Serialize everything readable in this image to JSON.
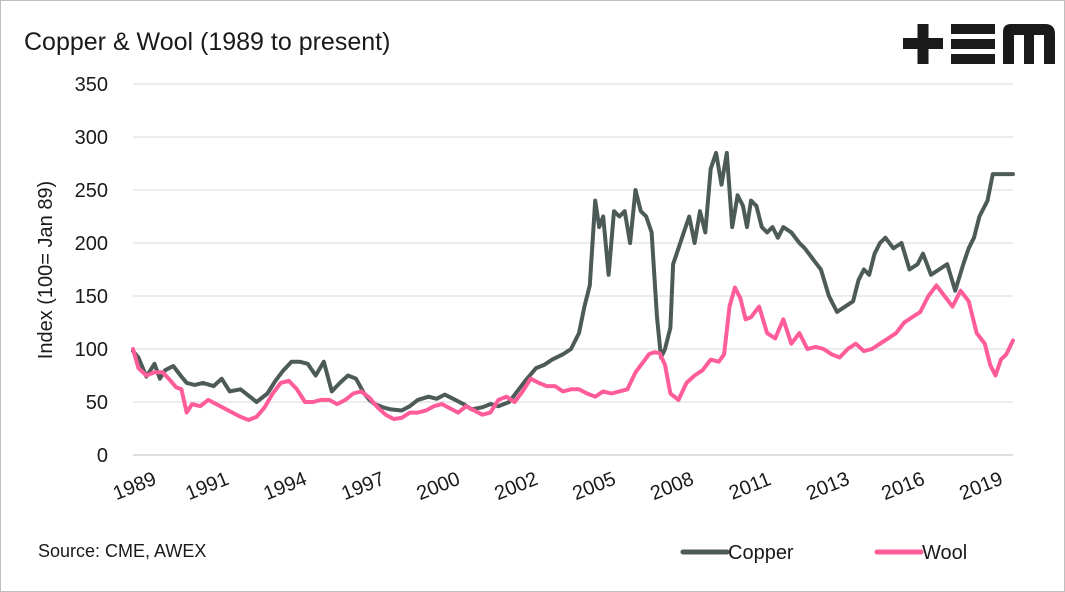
{
  "title": "Copper & Wool (1989 to present)",
  "source": "Source: CME, AWEX",
  "logo_text": "+EM",
  "colors": {
    "copper": "#4d5b58",
    "wool": "#ff5c9a",
    "grid": "#d9d9d9",
    "text": "#1a1a1a"
  },
  "chart_data": {
    "type": "line",
    "title": "Copper & Wool (1989 to present)",
    "xlabel": "",
    "ylabel": "Index (100= Jan 89)",
    "ylim": [
      0,
      350
    ],
    "yticks": [
      0,
      50,
      100,
      150,
      200,
      250,
      300,
      350
    ],
    "xlim": [
      1989.0,
      2021.75
    ],
    "xtick_labels": [
      "1989",
      "1991",
      "1994",
      "1997",
      "2000",
      "2002",
      "2005",
      "2008",
      "2011",
      "2013",
      "2016",
      "2019"
    ],
    "xtick_positions": [
      1989.0,
      1991.7,
      1994.6,
      1997.5,
      2000.3,
      2003.2,
      2006.1,
      2009.0,
      2011.9,
      2014.8,
      2017.6,
      2020.5
    ],
    "grid": "horizontal",
    "legend": "bottom-right",
    "series": [
      {
        "name": "Copper",
        "color": "#4d5b58",
        "x": [
          1989.0,
          1989.2,
          1989.5,
          1989.8,
          1990.0,
          1990.2,
          1990.5,
          1990.8,
          1991.0,
          1991.3,
          1991.6,
          1992.0,
          1992.3,
          1992.6,
          1993.0,
          1993.3,
          1993.6,
          1994.0,
          1994.3,
          1994.6,
          1994.9,
          1995.2,
          1995.5,
          1995.8,
          1996.1,
          1996.4,
          1996.7,
          1997.0,
          1997.3,
          1997.6,
          1997.8,
          1998.0,
          1998.3,
          1998.6,
          1999.0,
          1999.3,
          1999.6,
          2000.0,
          2000.3,
          2000.6,
          2001.0,
          2001.3,
          2001.6,
          2002.0,
          2002.3,
          2002.6,
          2003.0,
          2003.3,
          2003.6,
          2004.0,
          2004.3,
          2004.6,
          2005.0,
          2005.3,
          2005.6,
          2005.8,
          2006.0,
          2006.2,
          2006.35,
          2006.5,
          2006.7,
          2006.9,
          2007.1,
          2007.3,
          2007.5,
          2007.7,
          2007.9,
          2008.1,
          2008.3,
          2008.5,
          2008.65,
          2008.8,
          2009.0,
          2009.1,
          2009.3,
          2009.5,
          2009.7,
          2009.9,
          2010.1,
          2010.3,
          2010.5,
          2010.7,
          2010.9,
          2011.1,
          2011.3,
          2011.5,
          2011.7,
          2011.85,
          2012.0,
          2012.2,
          2012.4,
          2012.6,
          2012.8,
          2013.0,
          2013.2,
          2013.5,
          2013.8,
          2014.0,
          2014.3,
          2014.6,
          2014.9,
          2015.2,
          2015.5,
          2015.8,
          2016.0,
          2016.2,
          2016.4,
          2016.6,
          2016.8,
          2017.0,
          2017.3,
          2017.6,
          2017.9,
          2018.2,
          2018.4,
          2018.7,
          2019.0,
          2019.3,
          2019.6,
          2019.9,
          2020.1,
          2020.3,
          2020.5,
          2020.8,
          2021.0,
          2021.2,
          2021.4,
          2021.6,
          2021.75
        ],
        "values": [
          98,
          92,
          74,
          86,
          72,
          80,
          84,
          74,
          68,
          66,
          68,
          65,
          72,
          60,
          62,
          56,
          50,
          58,
          70,
          80,
          88,
          88,
          86,
          75,
          88,
          60,
          68,
          75,
          72,
          58,
          52,
          48,
          45,
          43,
          42,
          46,
          52,
          55,
          53,
          57,
          52,
          48,
          43,
          45,
          48,
          46,
          50,
          60,
          70,
          82,
          85,
          90,
          95,
          100,
          115,
          140,
          160,
          240,
          215,
          225,
          170,
          230,
          225,
          230,
          200,
          250,
          230,
          225,
          210,
          130,
          92,
          100,
          120,
          180,
          195,
          210,
          225,
          200,
          230,
          210,
          270,
          285,
          255,
          285,
          215,
          245,
          235,
          215,
          240,
          235,
          215,
          210,
          215,
          205,
          215,
          210,
          200,
          195,
          185,
          175,
          150,
          135,
          140,
          145,
          165,
          175,
          170,
          190,
          200,
          205,
          195,
          200,
          175,
          180,
          190,
          170,
          175,
          180,
          155,
          180,
          195,
          205,
          225,
          240,
          265,
          265,
          265,
          265,
          265
        ],
        "note": ""
      },
      {
        "name": "Wool",
        "color": "#ff5c9a",
        "x": [
          1989.0,
          1989.2,
          1989.5,
          1989.8,
          1990.1,
          1990.4,
          1990.6,
          1990.8,
          1991.0,
          1991.2,
          1991.5,
          1991.8,
          1992.1,
          1992.4,
          1992.7,
          1993.0,
          1993.3,
          1993.6,
          1993.9,
          1994.2,
          1994.5,
          1994.8,
          1995.1,
          1995.4,
          1995.7,
          1996.0,
          1996.3,
          1996.6,
          1996.9,
          1997.2,
          1997.5,
          1997.8,
          1998.1,
          1998.4,
          1998.7,
          1999.0,
          1999.3,
          1999.6,
          1999.9,
          2000.2,
          2000.5,
          2000.8,
          2001.1,
          2001.4,
          2001.7,
          2002.0,
          2002.3,
          2002.6,
          2002.9,
          2003.2,
          2003.5,
          2003.8,
          2004.1,
          2004.4,
          2004.7,
          2005.0,
          2005.3,
          2005.6,
          2005.9,
          2006.2,
          2006.5,
          2006.8,
          2007.1,
          2007.4,
          2007.7,
          2008.0,
          2008.2,
          2008.4,
          2008.6,
          2008.8,
          2009.0,
          2009.3,
          2009.6,
          2009.9,
          2010.2,
          2010.5,
          2010.8,
          2011.0,
          2011.2,
          2011.4,
          2011.6,
          2011.8,
          2012.0,
          2012.3,
          2012.6,
          2012.9,
          2013.2,
          2013.5,
          2013.8,
          2014.1,
          2014.4,
          2014.7,
          2015.0,
          2015.3,
          2015.6,
          2015.9,
          2016.2,
          2016.5,
          2016.8,
          2017.1,
          2017.4,
          2017.7,
          2018.0,
          2018.3,
          2018.6,
          2018.9,
          2019.2,
          2019.5,
          2019.8,
          2020.1,
          2020.4,
          2020.7,
          2020.9,
          2021.1,
          2021.3,
          2021.5,
          2021.75
        ],
        "values": [
          100,
          82,
          75,
          78,
          78,
          70,
          64,
          62,
          40,
          48,
          46,
          52,
          48,
          44,
          40,
          36,
          33,
          36,
          45,
          58,
          68,
          70,
          62,
          50,
          50,
          52,
          52,
          48,
          52,
          58,
          60,
          54,
          45,
          38,
          34,
          35,
          40,
          40,
          42,
          46,
          48,
          44,
          40,
          46,
          42,
          38,
          40,
          52,
          55,
          50,
          60,
          72,
          68,
          65,
          65,
          60,
          62,
          62,
          58,
          55,
          60,
          58,
          60,
          62,
          78,
          88,
          95,
          97,
          96,
          85,
          58,
          52,
          68,
          75,
          80,
          90,
          88,
          95,
          140,
          158,
          148,
          128,
          130,
          140,
          115,
          110,
          128,
          105,
          115,
          100,
          102,
          100,
          95,
          92,
          100,
          105,
          98,
          100,
          105,
          110,
          115,
          125,
          130,
          135,
          150,
          160,
          150,
          140,
          155,
          145,
          115,
          105,
          85,
          75,
          90,
          95,
          108
        ],
        "note": ""
      }
    ]
  }
}
